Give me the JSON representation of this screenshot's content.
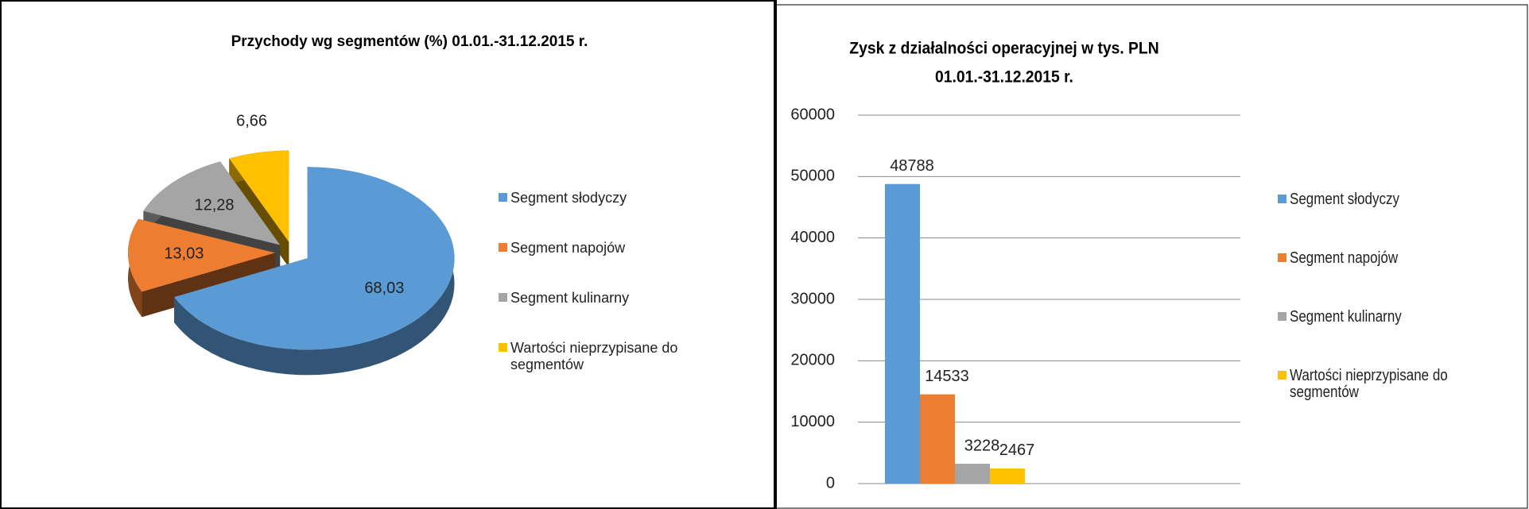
{
  "chart_data": [
    {
      "type": "pie",
      "title": "Przychody wg segmentów (%) 01.01.-31.12.2015 r.",
      "categories": [
        "Segment słodyczy",
        "Segment napojów",
        "Segment kulinarny",
        "Wartości nieprzypisane do segmentów"
      ],
      "values": [
        68.03,
        13.03,
        12.28,
        6.66
      ],
      "value_labels": [
        "68,03",
        "13,03",
        "12,28",
        "6,66"
      ],
      "colors": [
        "#5b9bd5",
        "#ed7d31",
        "#a5a5a5",
        "#ffc000"
      ],
      "legend": "right"
    },
    {
      "type": "bar",
      "title": "Zysk z działalności operacyjnej w tys. PLN",
      "subtitle": "01.01.-31.12.2015 r.",
      "categories": [
        null
      ],
      "series": [
        {
          "name": "Segment słodyczy",
          "color": "#5b9bd5",
          "values": [
            48788
          ]
        },
        {
          "name": "Segment napojów",
          "color": "#ed7d31",
          "values": [
            14533
          ]
        },
        {
          "name": "Segment kulinarny",
          "color": "#a5a5a5",
          "values": [
            3228
          ]
        },
        {
          "name": "Wartości nieprzypisane do segmentów",
          "color": "#ffc000",
          "values": [
            2467
          ]
        }
      ],
      "ylim": [
        0,
        60000
      ],
      "yticks": [
        0,
        10000,
        20000,
        30000,
        40000,
        50000,
        60000
      ],
      "grid": true,
      "legend": "right"
    }
  ]
}
